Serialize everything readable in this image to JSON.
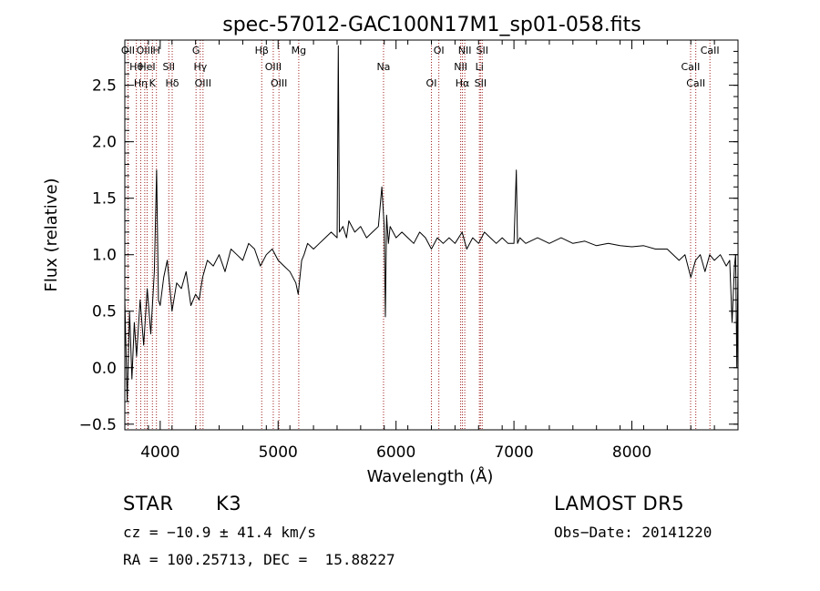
{
  "chart_data": {
    "type": "line",
    "title": "spec-57012-GAC100N17M1_sp01-058.fits",
    "xlabel": "Wavelength (Å)",
    "ylabel": "Flux (relative)",
    "xlim": [
      3700,
      8900
    ],
    "ylim": [
      -0.55,
      2.9
    ],
    "xticks": [
      {
        "value": 4000,
        "label": "4000"
      },
      {
        "value": 5000,
        "label": "5000"
      },
      {
        "value": 6000,
        "label": "6000"
      },
      {
        "value": 7000,
        "label": "7000"
      },
      {
        "value": 8000,
        "label": "8000"
      }
    ],
    "yticks": [
      {
        "value": -0.5,
        "label": "−0.5"
      },
      {
        "value": 0.0,
        "label": "0.0"
      },
      {
        "value": 0.5,
        "label": "0.5"
      },
      {
        "value": 1.0,
        "label": "1.0"
      },
      {
        "value": 1.5,
        "label": "1.5"
      },
      {
        "value": 2.0,
        "label": "2.0"
      },
      {
        "value": 2.5,
        "label": "2.5"
      }
    ],
    "line_color": "#000000",
    "marker_color": "#a02020",
    "series": [
      {
        "x": [
          3700,
          3720,
          3740,
          3760,
          3780,
          3800,
          3830,
          3860,
          3890,
          3920,
          3950,
          3970,
          3985,
          4000,
          4030,
          4060,
          4100,
          4140,
          4180,
          4220,
          4260,
          4300,
          4330,
          4360,
          4400,
          4450,
          4500,
          4550,
          4600,
          4650,
          4700,
          4750,
          4800,
          4850,
          4900,
          4950,
          5000,
          5050,
          5100,
          5150,
          5170,
          5185,
          5200,
          5220,
          5250,
          5300,
          5350,
          5400,
          5450,
          5500,
          5510,
          5520,
          5550,
          5580,
          5600,
          5650,
          5700,
          5750,
          5800,
          5850,
          5880,
          5900,
          5910,
          5920,
          5935,
          5950,
          6000,
          6050,
          6100,
          6150,
          6200,
          6250,
          6300,
          6350,
          6400,
          6450,
          6500,
          6560,
          6600,
          6650,
          6700,
          6750,
          6800,
          6850,
          6900,
          6950,
          7000,
          7020,
          7030,
          7050,
          7100,
          7200,
          7300,
          7400,
          7500,
          7600,
          7700,
          7800,
          7900,
          8000,
          8100,
          8200,
          8300,
          8400,
          8450,
          8500,
          8540,
          8580,
          8620,
          8660,
          8700,
          8750,
          8800,
          8830,
          8850,
          8870,
          8880,
          8890,
          8900
        ],
        "y": [
          0.6,
          -0.3,
          0.5,
          -0.1,
          0.4,
          0.1,
          0.6,
          0.2,
          0.7,
          0.3,
          0.85,
          1.75,
          0.6,
          0.55,
          0.8,
          0.95,
          0.5,
          0.75,
          0.7,
          0.85,
          0.55,
          0.65,
          0.6,
          0.8,
          0.95,
          0.9,
          1.0,
          0.85,
          1.05,
          1.0,
          0.95,
          1.1,
          1.05,
          0.9,
          1.0,
          1.05,
          0.95,
          0.9,
          0.85,
          0.75,
          0.65,
          0.8,
          0.95,
          1.0,
          1.1,
          1.05,
          1.1,
          1.15,
          1.2,
          1.15,
          2.85,
          1.2,
          1.25,
          1.15,
          1.3,
          1.2,
          1.25,
          1.15,
          1.2,
          1.25,
          1.6,
          1.25,
          0.45,
          1.35,
          1.1,
          1.25,
          1.15,
          1.2,
          1.15,
          1.1,
          1.2,
          1.15,
          1.05,
          1.15,
          1.1,
          1.15,
          1.1,
          1.2,
          1.05,
          1.15,
          1.1,
          1.2,
          1.15,
          1.1,
          1.15,
          1.1,
          1.1,
          1.75,
          1.1,
          1.15,
          1.1,
          1.15,
          1.1,
          1.15,
          1.1,
          1.12,
          1.08,
          1.1,
          1.08,
          1.07,
          1.08,
          1.05,
          1.05,
          0.95,
          1.0,
          0.8,
          0.95,
          1.0,
          0.85,
          1.0,
          0.95,
          1.0,
          0.9,
          0.95,
          0.4,
          0.9,
          1.0,
          0.0,
          0.9
        ]
      }
    ],
    "lines": [
      {
        "wave": 3727,
        "labels": [
          "OII"
        ]
      },
      {
        "wave": 3798,
        "labels": [
          "Hθ"
        ]
      },
      {
        "wave": 3835,
        "labels": [
          "Hη"
        ]
      },
      {
        "wave": 3869,
        "labels": [
          "OIII"
        ]
      },
      {
        "wave": 3889,
        "labels": [
          "HeI"
        ]
      },
      {
        "wave": 3934,
        "labels": [
          "K"
        ]
      },
      {
        "wave": 3968,
        "labels": [
          "H"
        ]
      },
      {
        "wave": 4073,
        "labels": [
          "SII"
        ]
      },
      {
        "wave": 4102,
        "labels": [
          "Hδ"
        ]
      },
      {
        "wave": 4304,
        "labels": [
          "G"
        ]
      },
      {
        "wave": 4340,
        "labels": [
          "Hγ"
        ]
      },
      {
        "wave": 4363,
        "labels": [
          "OIII"
        ]
      },
      {
        "wave": 4861,
        "labels": [
          "Hβ"
        ]
      },
      {
        "wave": 4959,
        "labels": [
          "OIII"
        ]
      },
      {
        "wave": 5007,
        "labels": [
          "OIII"
        ]
      },
      {
        "wave": 5175,
        "labels": [
          "Mg"
        ]
      },
      {
        "wave": 5894,
        "labels": [
          "Na"
        ]
      },
      {
        "wave": 6300,
        "labels": [
          "OI"
        ]
      },
      {
        "wave": 6363,
        "labels": [
          "OI"
        ]
      },
      {
        "wave": 6548,
        "labels": [
          "NII"
        ]
      },
      {
        "wave": 6563,
        "labels": [
          "Hα"
        ]
      },
      {
        "wave": 6583,
        "labels": [
          "NII"
        ]
      },
      {
        "wave": 6707,
        "labels": [
          "Li"
        ]
      },
      {
        "wave": 6716,
        "labels": [
          "SII"
        ]
      },
      {
        "wave": 6731,
        "labels": [
          "SII"
        ]
      },
      {
        "wave": 8498,
        "labels": [
          "CaII"
        ]
      },
      {
        "wave": 8542,
        "labels": [
          "CaII"
        ]
      },
      {
        "wave": 8662,
        "labels": [
          "CaII"
        ]
      }
    ]
  },
  "info": {
    "object_class": "STAR",
    "subclass": "K3",
    "survey": "LAMOST DR5",
    "cz_text": "cz = −10.9 ± 41.4 km/s",
    "obs_date_text": "Obs−Date: 20141220",
    "coords_text": "RA = 100.25713, DEC =  15.88227"
  }
}
